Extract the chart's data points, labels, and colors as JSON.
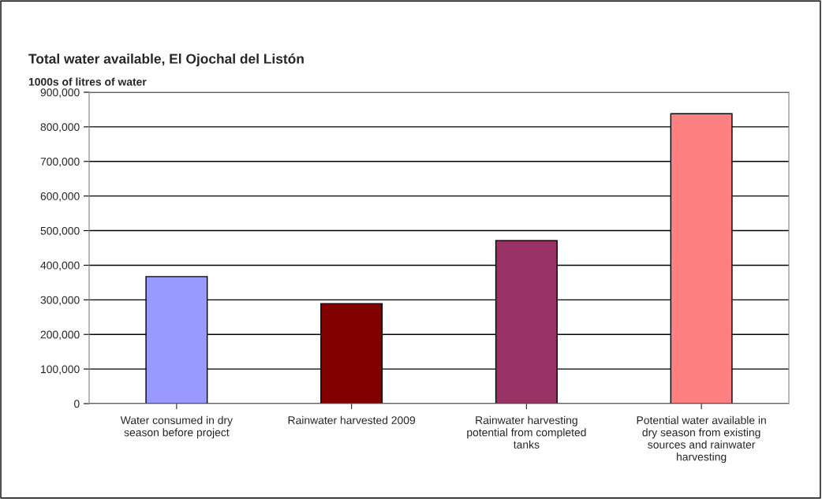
{
  "chart_data": {
    "type": "bar",
    "title": "Total water available, El Ojochal del Listón",
    "ylabel": "1000s of litres of water",
    "categories": [
      "Water consumed in dry season before project",
      "Rainwater harvested 2009",
      "Rainwater harvesting potential from completed tanks",
      "Potential water available in dry season from existing sources and rainwater harvesting"
    ],
    "values": [
      367000,
      289000,
      471000,
      838000
    ],
    "colors": [
      "#9999ff",
      "#800000",
      "#993366",
      "#ff8080"
    ],
    "ylim": [
      0,
      900000
    ],
    "yticks": [
      {
        "value": 0,
        "label": "0"
      },
      {
        "value": 100000,
        "label": "100,000"
      },
      {
        "value": 200000,
        "label": "200,000"
      },
      {
        "value": 300000,
        "label": "300,000"
      },
      {
        "value": 400000,
        "label": "400,000"
      },
      {
        "value": 500000,
        "label": "500,000"
      },
      {
        "value": 600000,
        "label": "600,000"
      },
      {
        "value": 700000,
        "label": "700,000"
      },
      {
        "value": 800000,
        "label": "800,000"
      },
      {
        "value": 900000,
        "label": "900,000"
      }
    ],
    "grid": "y",
    "legend": false
  }
}
